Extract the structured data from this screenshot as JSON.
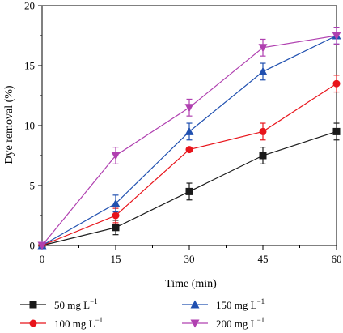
{
  "chart_data": {
    "type": "line",
    "xlabel": "Time (min)",
    "ylabel": "Dye removal (%)",
    "x": [
      0,
      15,
      30,
      45,
      60
    ],
    "xlim": [
      0,
      60
    ],
    "ylim": [
      0,
      20
    ],
    "xticks": [
      0,
      15,
      30,
      45,
      60
    ],
    "yticks": [
      0,
      5,
      10,
      15,
      20
    ],
    "grid": false,
    "legend_position": "bottom",
    "series": [
      {
        "name": "50 mg L",
        "unit_superscript": "−1",
        "color": "#1a1a1a",
        "marker": "square",
        "values": [
          0,
          1.5,
          4.5,
          7.5,
          9.5
        ],
        "errors": [
          0,
          0.6,
          0.7,
          0.7,
          0.7
        ]
      },
      {
        "name": "100 mg L",
        "unit_superscript": "−1",
        "color": "#e8141b",
        "marker": "circle",
        "values": [
          0,
          2.5,
          8.0,
          9.5,
          13.5
        ],
        "errors": [
          0,
          0.6,
          0,
          0.7,
          0.7
        ]
      },
      {
        "name": "150 mg L",
        "unit_superscript": "−1",
        "color": "#2050b0",
        "marker": "triangle-up",
        "values": [
          0,
          3.5,
          9.5,
          14.5,
          17.5
        ],
        "errors": [
          0,
          0.7,
          0.7,
          0.7,
          0.7
        ]
      },
      {
        "name": "200 mg L",
        "unit_superscript": "−1",
        "color": "#b040b0",
        "marker": "triangle-down",
        "values": [
          0,
          7.5,
          11.5,
          16.5,
          17.5
        ],
        "errors": [
          0,
          0.7,
          0.7,
          0.7,
          0.7
        ]
      }
    ]
  }
}
